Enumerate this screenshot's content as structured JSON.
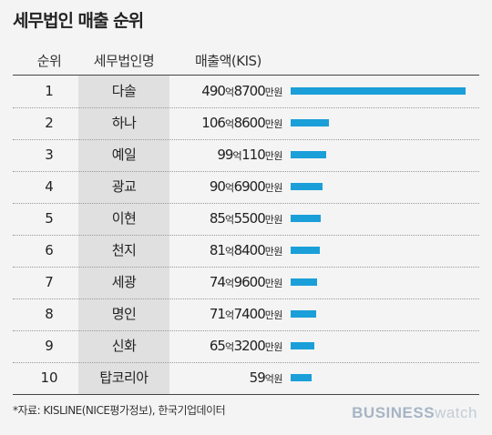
{
  "title": "세무법인 매출 순위",
  "headers": {
    "rank": "순위",
    "name": "세무법인명",
    "revenue": "매출액(KIS)"
  },
  "rows": [
    {
      "rank": "1",
      "name": "다솔",
      "rev_a": "490",
      "rev_eok": "억",
      "rev_b": "8700",
      "rev_man": "만원"
    },
    {
      "rank": "2",
      "name": "하나",
      "rev_a": "106",
      "rev_eok": "억",
      "rev_b": "8600",
      "rev_man": "만원"
    },
    {
      "rank": "3",
      "name": "예일",
      "rev_a": "99",
      "rev_eok": "억",
      "rev_b": "110",
      "rev_man": "만원"
    },
    {
      "rank": "4",
      "name": "광교",
      "rev_a": "90",
      "rev_eok": "억",
      "rev_b": "6900",
      "rev_man": "만원"
    },
    {
      "rank": "5",
      "name": "이현",
      "rev_a": "85",
      "rev_eok": "억",
      "rev_b": "5500",
      "rev_man": "만원"
    },
    {
      "rank": "6",
      "name": "천지",
      "rev_a": "81",
      "rev_eok": "억",
      "rev_b": "8400",
      "rev_man": "만원"
    },
    {
      "rank": "7",
      "name": "세광",
      "rev_a": "74",
      "rev_eok": "억",
      "rev_b": "9600",
      "rev_man": "만원"
    },
    {
      "rank": "8",
      "name": "명인",
      "rev_a": "71",
      "rev_eok": "억",
      "rev_b": "7400",
      "rev_man": "만원"
    },
    {
      "rank": "9",
      "name": "신화",
      "rev_a": "65",
      "rev_eok": "억",
      "rev_b": "3200",
      "rev_man": "만원"
    },
    {
      "rank": "10",
      "name": "탑코리아",
      "rev_a": "59",
      "rev_eok": "억원",
      "rev_b": "",
      "rev_man": ""
    }
  ],
  "chart_data": {
    "type": "bar",
    "orientation": "horizontal",
    "title": "세무법인 매출 순위",
    "categories": [
      "다솔",
      "하나",
      "예일",
      "광교",
      "이현",
      "천지",
      "세광",
      "명인",
      "신화",
      "탑코리아"
    ],
    "values_man_won": [
      4908700,
      1068600,
      990110,
      906900,
      855500,
      818400,
      749600,
      717400,
      653200,
      590000
    ],
    "xlim": [
      0,
      4908700
    ],
    "bar_color": "#1a9fd9",
    "grid": false
  },
  "source": "*자료: KISLINE(NICE평가정보), 한국기업데이터",
  "logo": {
    "part1": "BUSINESS",
    "part2": "watch"
  }
}
